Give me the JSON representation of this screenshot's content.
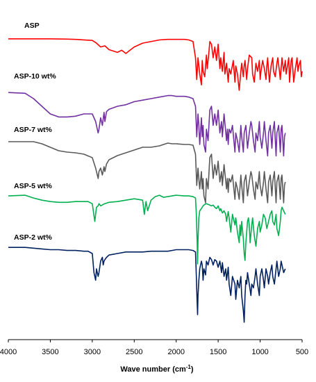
{
  "chart_data": {
    "type": "line",
    "xlabel": "Wave number (cm",
    "xlabel_sup": "-1",
    "xlabel_end": ")",
    "xlim": [
      4000,
      500
    ],
    "x_ticks": [
      4000,
      3500,
      3000,
      2500,
      2000,
      1500,
      1000,
      500
    ],
    "y_ticks_shown": false,
    "series": [
      {
        "name": "ASP",
        "color": "#ff0000",
        "x": [
          4000,
          3500,
          3300,
          3200,
          3000,
          2950,
          2900,
          2850,
          2800,
          2700,
          2650,
          2600,
          2550,
          2500,
          2400,
          2200,
          2100,
          1900,
          1850,
          1800,
          1770,
          1755,
          1740,
          1720,
          1700,
          1690,
          1680,
          1660,
          1640,
          1630,
          1610,
          1600,
          1580,
          1560,
          1540,
          1520,
          1500,
          1480,
          1470,
          1450,
          1430,
          1420,
          1400,
          1380,
          1370,
          1350,
          1320,
          1300,
          1290,
          1270,
          1250,
          1230,
          1220,
          1200,
          1190,
          1180,
          1160,
          1150,
          1130,
          1100,
          1090,
          1070,
          1050,
          1030,
          1010,
          1000,
          990,
          970,
          950,
          930,
          920,
          910,
          890,
          870,
          850,
          840,
          820,
          800,
          790,
          770,
          760,
          750,
          740,
          720,
          710,
          700,
          690,
          670,
          660,
          650,
          630,
          620,
          600,
          580,
          560,
          550,
          540,
          520,
          510,
          500
        ],
        "y": [
          0.95,
          0.95,
          0.945,
          0.94,
          0.92,
          0.87,
          0.8,
          0.82,
          0.75,
          0.7,
          0.74,
          0.68,
          0.74,
          0.8,
          0.87,
          0.93,
          0.94,
          0.94,
          0.93,
          0.9,
          0.6,
          0.2,
          0.6,
          0.3,
          0.1,
          0.55,
          0.35,
          0.25,
          0.65,
          0.4,
          0.7,
          0.9,
          0.85,
          0.6,
          0.8,
          0.55,
          0.85,
          0.4,
          0.6,
          0.35,
          0.7,
          0.3,
          0.5,
          0.15,
          0.4,
          0.3,
          0.55,
          0.15,
          0.45,
          0.3,
          0.0,
          0.35,
          0.5,
          0.25,
          0.45,
          0.55,
          0.2,
          0.4,
          0.65,
          0.6,
          0.3,
          0.15,
          0.5,
          0.35,
          0.55,
          0.2,
          0.35,
          0.55,
          0.4,
          0.2,
          0.45,
          0.6,
          0.15,
          0.45,
          0.6,
          0.35,
          0.25,
          0.5,
          0.6,
          0.35,
          0.2,
          0.4,
          0.6,
          0.35,
          0.45,
          0.55,
          0.3,
          0.5,
          0.6,
          0.15,
          0.55,
          0.6,
          0.15,
          0.4,
          0.6,
          0.35,
          0.45,
          0.55,
          0.25,
          0.35
        ]
      },
      {
        "name": "ASP-10 wt%",
        "color": "#7030a0",
        "x": [
          4000,
          3800,
          3700,
          3600,
          3500,
          3400,
          3300,
          3200,
          3100,
          3000,
          2960,
          2930,
          2920,
          2900,
          2880,
          2860,
          2850,
          2830,
          2800,
          2700,
          2600,
          2500,
          2400,
          2300,
          2200,
          2100,
          2050,
          2000,
          1900,
          1850,
          1800,
          1770,
          1755,
          1740,
          1730,
          1720,
          1700,
          1690,
          1680,
          1670,
          1650,
          1640,
          1620,
          1600,
          1580,
          1560,
          1540,
          1520,
          1500,
          1480,
          1460,
          1450,
          1430,
          1400,
          1390,
          1380,
          1370,
          1350,
          1330,
          1300,
          1290,
          1270,
          1250,
          1230,
          1220,
          1200,
          1190,
          1170,
          1150,
          1130,
          1110,
          1100,
          1080,
          1060,
          1050,
          1030,
          1010,
          1000,
          980,
          960,
          950,
          930,
          910,
          900,
          880,
          860,
          850,
          830,
          810,
          800,
          780,
          760,
          750,
          740,
          720,
          710,
          700
        ],
        "y": [
          0.98,
          0.97,
          0.9,
          0.8,
          0.7,
          0.66,
          0.66,
          0.67,
          0.7,
          0.7,
          0.6,
          0.45,
          0.5,
          0.65,
          0.55,
          0.72,
          0.6,
          0.73,
          0.76,
          0.8,
          0.82,
          0.86,
          0.88,
          0.9,
          0.92,
          0.94,
          0.94,
          0.93,
          0.93,
          0.92,
          0.9,
          0.8,
          0.4,
          0.7,
          0.55,
          0.3,
          0.65,
          0.4,
          0.55,
          0.3,
          0.2,
          0.5,
          0.35,
          0.75,
          0.8,
          0.55,
          0.7,
          0.55,
          0.75,
          0.45,
          0.6,
          0.4,
          0.7,
          0.35,
          0.5,
          0.3,
          0.5,
          0.45,
          0.55,
          0.2,
          0.45,
          0.35,
          0.2,
          0.55,
          0.4,
          0.2,
          0.45,
          0.55,
          0.25,
          0.45,
          0.6,
          0.55,
          0.35,
          0.2,
          0.45,
          0.35,
          0.6,
          0.4,
          0.25,
          0.45,
          0.6,
          0.35,
          0.15,
          0.45,
          0.55,
          0.25,
          0.45,
          0.6,
          0.15,
          0.45,
          0.55,
          0.2,
          0.5,
          0.55,
          0.15,
          0.4,
          0.45
        ]
      },
      {
        "name": "ASP-7 wt%",
        "color": "#595959",
        "x": [
          4000,
          3700,
          3600,
          3500,
          3400,
          3300,
          3200,
          3100,
          3000,
          2960,
          2930,
          2920,
          2900,
          2880,
          2860,
          2850,
          2830,
          2800,
          2700,
          2600,
          2500,
          2400,
          2300,
          2200,
          2100,
          2050,
          2000,
          1900,
          1850,
          1800,
          1770,
          1755,
          1740,
          1730,
          1720,
          1700,
          1690,
          1680,
          1670,
          1650,
          1640,
          1620,
          1600,
          1580,
          1560,
          1540,
          1520,
          1500,
          1480,
          1460,
          1450,
          1430,
          1400,
          1390,
          1380,
          1370,
          1350,
          1330,
          1300,
          1290,
          1270,
          1250,
          1230,
          1220,
          1200,
          1190,
          1170,
          1150,
          1130,
          1110,
          1100,
          1080,
          1060,
          1050,
          1030,
          1010,
          1000,
          980,
          960,
          950,
          930,
          910,
          900,
          880,
          860,
          850,
          830,
          810,
          800,
          780,
          760,
          750,
          740,
          720,
          710,
          700
        ],
        "y": [
          0.98,
          0.98,
          0.95,
          0.9,
          0.85,
          0.83,
          0.82,
          0.8,
          0.75,
          0.6,
          0.45,
          0.55,
          0.6,
          0.5,
          0.62,
          0.55,
          0.66,
          0.72,
          0.78,
          0.82,
          0.86,
          0.9,
          0.9,
          0.92,
          0.96,
          0.95,
          0.95,
          0.94,
          0.94,
          0.93,
          0.8,
          0.35,
          0.6,
          0.45,
          0.3,
          0.55,
          0.3,
          0.45,
          0.2,
          0.1,
          0.45,
          0.3,
          0.75,
          0.8,
          0.45,
          0.65,
          0.5,
          0.7,
          0.4,
          0.55,
          0.35,
          0.65,
          0.3,
          0.45,
          0.25,
          0.45,
          0.4,
          0.5,
          0.15,
          0.4,
          0.3,
          0.15,
          0.5,
          0.35,
          0.1,
          0.4,
          0.5,
          0.2,
          0.4,
          0.55,
          0.5,
          0.3,
          0.15,
          0.4,
          0.3,
          0.55,
          0.35,
          0.2,
          0.4,
          0.55,
          0.3,
          0.1,
          0.4,
          0.5,
          0.2,
          0.4,
          0.55,
          0.1,
          0.4,
          0.5,
          0.15,
          0.45,
          0.5,
          0.1,
          0.35,
          0.4
        ]
      },
      {
        "name": "ASP-5 wt%",
        "color": "#00b050",
        "x": [
          4000,
          3800,
          3700,
          3600,
          3500,
          3400,
          3300,
          3200,
          3100,
          3050,
          3000,
          2970,
          2950,
          2930,
          2920,
          2900,
          2870,
          2850,
          2800,
          2700,
          2600,
          2500,
          2400,
          2380,
          2360,
          2340,
          2300,
          2250,
          2200,
          2150,
          2100,
          2050,
          2000,
          1900,
          1850,
          1800,
          1770,
          1760,
          1750,
          1745,
          1740,
          1730,
          1720,
          1700,
          1690,
          1680,
          1660,
          1640,
          1620,
          1600,
          1580,
          1560,
          1540,
          1520,
          1500,
          1480,
          1470,
          1450,
          1430,
          1410,
          1400,
          1380,
          1370,
          1350,
          1330,
          1300,
          1290,
          1270,
          1250,
          1240,
          1230,
          1220,
          1200,
          1190,
          1180,
          1170,
          1160,
          1150,
          1140,
          1130,
          1120,
          1100,
          1090,
          1070,
          1050,
          1030,
          1010,
          1000,
          980,
          960,
          940,
          920,
          900,
          880,
          860,
          850,
          830,
          810,
          800,
          780,
          760,
          750,
          740,
          720,
          700
        ],
        "y": [
          0.96,
          0.97,
          0.93,
          0.9,
          0.88,
          0.87,
          0.87,
          0.88,
          0.88,
          0.88,
          0.85,
          0.6,
          0.8,
          0.82,
          0.85,
          0.82,
          0.84,
          0.85,
          0.87,
          0.88,
          0.9,
          0.92,
          0.9,
          0.7,
          0.88,
          0.75,
          0.9,
          0.95,
          0.97,
          0.94,
          0.95,
          0.96,
          0.97,
          0.96,
          0.96,
          0.95,
          0.93,
          0.7,
          0.3,
          0.0,
          0.35,
          0.65,
          0.75,
          0.78,
          0.8,
          0.82,
          0.84,
          0.85,
          0.84,
          0.83,
          0.82,
          0.83,
          0.8,
          0.78,
          0.82,
          0.75,
          0.78,
          0.72,
          0.75,
          0.7,
          0.6,
          0.74,
          0.65,
          0.45,
          0.7,
          0.55,
          0.65,
          0.45,
          0.3,
          0.55,
          0.4,
          0.6,
          0.35,
          0.15,
          0.05,
          0.3,
          0.45,
          0.6,
          0.65,
          0.55,
          0.3,
          0.55,
          0.65,
          0.4,
          0.25,
          0.5,
          0.6,
          0.45,
          0.55,
          0.7,
          0.65,
          0.5,
          0.6,
          0.7,
          0.75,
          0.6,
          0.55,
          0.7,
          0.5,
          0.4,
          0.6,
          0.75,
          0.8,
          0.75,
          0.7
        ]
      },
      {
        "name": "ASP-2 wt%",
        "color": "#002060",
        "x": [
          4000,
          3800,
          3700,
          3600,
          3500,
          3400,
          3300,
          3200,
          3100,
          3050,
          3000,
          2980,
          2960,
          2950,
          2930,
          2920,
          2900,
          2880,
          2870,
          2860,
          2850,
          2830,
          2800,
          2700,
          2600,
          2500,
          2400,
          2300,
          2200,
          2100,
          2050,
          2000,
          1900,
          1850,
          1800,
          1770,
          1760,
          1750,
          1745,
          1740,
          1730,
          1720,
          1700,
          1690,
          1680,
          1670,
          1650,
          1640,
          1620,
          1600,
          1580,
          1560,
          1540,
          1520,
          1500,
          1480,
          1460,
          1450,
          1430,
          1410,
          1400,
          1380,
          1370,
          1350,
          1330,
          1300,
          1290,
          1270,
          1250,
          1230,
          1220,
          1200,
          1190,
          1180,
          1170,
          1160,
          1150,
          1130,
          1110,
          1100,
          1080,
          1060,
          1050,
          1030,
          1010,
          1000,
          980,
          960,
          950,
          930,
          910,
          900,
          880,
          860,
          850,
          830,
          810,
          800,
          780,
          760,
          750,
          740,
          720,
          700
        ],
        "y": [
          0.98,
          0.98,
          0.97,
          0.96,
          0.95,
          0.95,
          0.94,
          0.94,
          0.93,
          0.93,
          0.9,
          0.65,
          0.55,
          0.7,
          0.6,
          0.65,
          0.8,
          0.85,
          0.75,
          0.8,
          0.82,
          0.85,
          0.88,
          0.9,
          0.92,
          0.92,
          0.92,
          0.93,
          0.93,
          0.93,
          0.94,
          0.95,
          0.95,
          0.95,
          0.94,
          0.92,
          0.6,
          0.25,
          0.1,
          0.35,
          0.55,
          0.7,
          0.8,
          0.75,
          0.55,
          0.7,
          0.62,
          0.8,
          0.75,
          0.85,
          0.82,
          0.75,
          0.82,
          0.8,
          0.72,
          0.8,
          0.65,
          0.78,
          0.6,
          0.7,
          0.55,
          0.72,
          0.5,
          0.35,
          0.6,
          0.5,
          0.3,
          0.55,
          0.45,
          0.6,
          0.35,
          0.15,
          0.0,
          0.35,
          0.55,
          0.5,
          0.65,
          0.5,
          0.35,
          0.5,
          0.45,
          0.6,
          0.7,
          0.5,
          0.35,
          0.6,
          0.7,
          0.55,
          0.45,
          0.7,
          0.6,
          0.5,
          0.65,
          0.75,
          0.6,
          0.5,
          0.7,
          0.8,
          0.6,
          0.7,
          0.8,
          0.75,
          0.65,
          0.7
        ]
      }
    ]
  }
}
